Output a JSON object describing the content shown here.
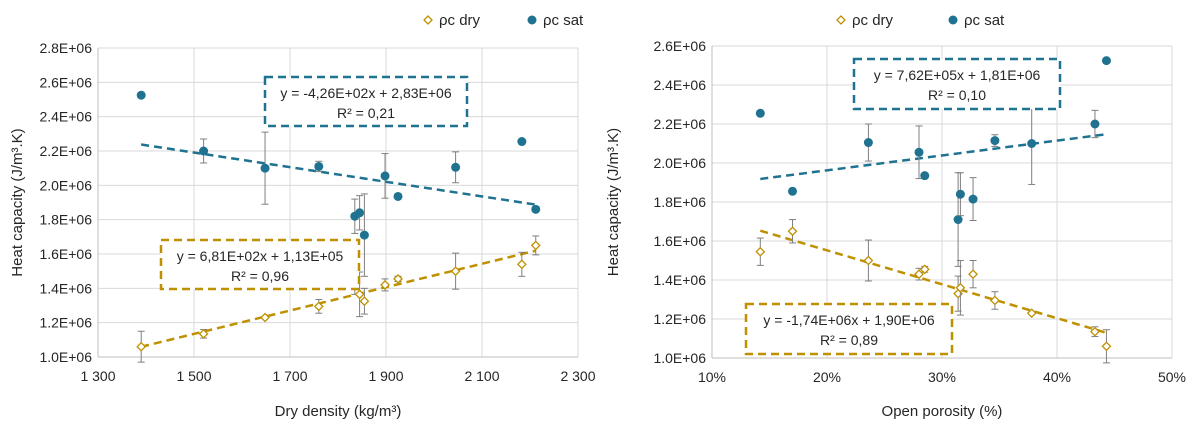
{
  "chart_data": [
    {
      "type": "scatter",
      "xlabel": "Dry density (kg/m³)",
      "ylabel": "Heat capacity (J/m³.K)",
      "xlim": [
        1300,
        2300
      ],
      "ylim": [
        1000000,
        2800000
      ],
      "x_ticks": [
        "1 300",
        "1 500",
        "1 700",
        "1 900",
        "2 100",
        "2 300"
      ],
      "y_ticks": [
        "1.0E+06",
        "1.2E+06",
        "1.4E+06",
        "1.6E+06",
        "1.8E+06",
        "2.0E+06",
        "2.2E+06",
        "2.4E+06",
        "2.6E+06",
        "2.8E+06"
      ],
      "grid": "horizontal and vertical",
      "legend_position": "top",
      "series": [
        {
          "name": "ρc dry",
          "color": "#bf9000",
          "marker": "diamond-open",
          "points": [
            {
              "x": 1390,
              "y": 1060000,
              "err": 90000
            },
            {
              "x": 1520,
              "y": 1135000,
              "err": 25000
            },
            {
              "x": 1648,
              "y": 1230000,
              "err": 0
            },
            {
              "x": 1760,
              "y": 1295000,
              "err": 40000
            },
            {
              "x": 1835,
              "y": 1435000,
              "err": 70000
            },
            {
              "x": 1845,
              "y": 1365000,
              "err": 130000
            },
            {
              "x": 1855,
              "y": 1325000,
              "err": 75000
            },
            {
              "x": 1898,
              "y": 1420000,
              "err": 35000
            },
            {
              "x": 1925,
              "y": 1455000,
              "err": 15000
            },
            {
              "x": 2045,
              "y": 1500000,
              "err": 105000
            },
            {
              "x": 2183,
              "y": 1540000,
              "err": 70000
            },
            {
              "x": 2212,
              "y": 1650000,
              "err": 55000
            }
          ],
          "trendline": {
            "slope": 681,
            "intercept": 113000,
            "equation": "y = 6,81E+02x + 1,13E+05",
            "r2": "R² = 0,96"
          }
        },
        {
          "name": "ρc sat",
          "color": "#1f7391",
          "marker": "circle-filled",
          "points": [
            {
              "x": 1390,
              "y": 2525000,
              "err": 0
            },
            {
              "x": 1520,
              "y": 2200000,
              "err": 70000
            },
            {
              "x": 1648,
              "y": 2100000,
              "err": 210000
            },
            {
              "x": 1760,
              "y": 2110000,
              "err": 30000
            },
            {
              "x": 1835,
              "y": 1820000,
              "err": 100000
            },
            {
              "x": 1845,
              "y": 1840000,
              "err": 100000
            },
            {
              "x": 1855,
              "y": 1710000,
              "err": 240000
            },
            {
              "x": 1898,
              "y": 2055000,
              "err": 130000
            },
            {
              "x": 1925,
              "y": 1935000,
              "err": 0
            },
            {
              "x": 2045,
              "y": 2105000,
              "err": 90000
            },
            {
              "x": 2183,
              "y": 2255000,
              "err": 0
            },
            {
              "x": 2212,
              "y": 1860000,
              "err": 0
            }
          ],
          "trendline": {
            "slope": -426,
            "intercept": 2830000,
            "equation": "y = -4,26E+02x + 2,83E+06",
            "r2": "R² = 0,21"
          }
        }
      ]
    },
    {
      "type": "scatter",
      "xlabel": "Open porosity (%)",
      "ylabel": "Heat capacity (J/m³.K)",
      "xlim": [
        10,
        50
      ],
      "ylim": [
        1000000,
        2600000
      ],
      "x_ticks": [
        "10%",
        "20%",
        "30%",
        "40%",
        "50%"
      ],
      "y_ticks": [
        "1.0E+06",
        "1.2E+06",
        "1.4E+06",
        "1.6E+06",
        "1.8E+06",
        "2.0E+06",
        "2.2E+06",
        "2.4E+06",
        "2.6E+06"
      ],
      "grid": "horizontal and vertical",
      "legend_position": "top",
      "series": [
        {
          "name": "ρc dry",
          "color": "#bf9000",
          "marker": "diamond-open",
          "points": [
            {
              "x": 14.2,
              "y": 1545000,
              "err": 70000
            },
            {
              "x": 17.0,
              "y": 1650000,
              "err": 60000
            },
            {
              "x": 23.6,
              "y": 1500000,
              "err": 105000
            },
            {
              "x": 28.0,
              "y": 1430000,
              "err": 30000
            },
            {
              "x": 28.5,
              "y": 1455000,
              "err": 15000
            },
            {
              "x": 31.4,
              "y": 1330000,
              "err": 90000
            },
            {
              "x": 31.6,
              "y": 1360000,
              "err": 140000
            },
            {
              "x": 32.7,
              "y": 1430000,
              "err": 70000
            },
            {
              "x": 34.6,
              "y": 1295000,
              "err": 45000
            },
            {
              "x": 37.8,
              "y": 1230000,
              "err": 0
            },
            {
              "x": 43.3,
              "y": 1135000,
              "err": 25000
            },
            {
              "x": 44.3,
              "y": 1060000,
              "err": 85000
            }
          ],
          "trendline": {
            "slope": -1740000,
            "intercept": 1900000,
            "equation": "y = -1,74E+06x + 1,90E+06",
            "r2": "R² = 0,89"
          }
        },
        {
          "name": "ρc sat",
          "color": "#1f7391",
          "marker": "circle-filled",
          "points": [
            {
              "x": 14.2,
              "y": 2255000,
              "err": 0
            },
            {
              "x": 17.0,
              "y": 1855000,
              "err": 0
            },
            {
              "x": 23.6,
              "y": 2105000,
              "err": 95000
            },
            {
              "x": 28.0,
              "y": 2055000,
              "err": 135000
            },
            {
              "x": 28.5,
              "y": 1935000,
              "err": 0
            },
            {
              "x": 31.4,
              "y": 1710000,
              "err": 240000
            },
            {
              "x": 31.6,
              "y": 1840000,
              "err": 110000
            },
            {
              "x": 32.7,
              "y": 1815000,
              "err": 110000
            },
            {
              "x": 34.6,
              "y": 2115000,
              "err": 30000
            },
            {
              "x": 37.8,
              "y": 2100000,
              "err": 210000
            },
            {
              "x": 43.3,
              "y": 2200000,
              "err": 70000
            },
            {
              "x": 44.3,
              "y": 2525000,
              "err": 0
            }
          ],
          "trendline": {
            "slope": 762000,
            "intercept": 1810000,
            "equation": "y = 7,62E+05x + 1,81E+06",
            "r2": "R² = 0,10"
          }
        }
      ]
    }
  ]
}
